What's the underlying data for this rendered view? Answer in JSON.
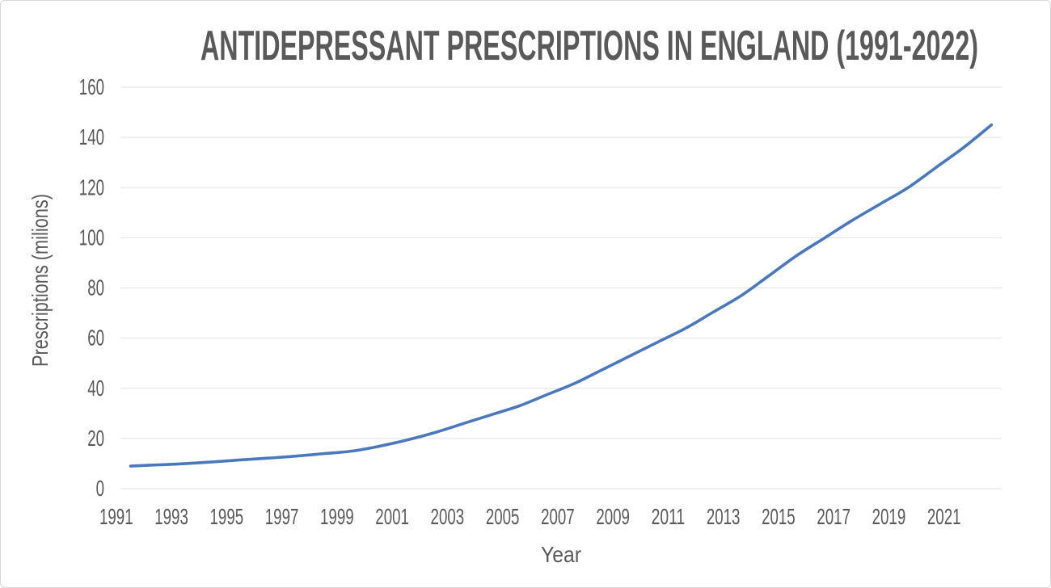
{
  "chart_data": {
    "type": "line",
    "title": "ANTIDEPRESSANT PRESCRIPTIONS IN ENGLAND (1991-2022)",
    "xlabel": "Year",
    "ylabel": "Prescriptions (milions)",
    "x": [
      1991,
      1992,
      1993,
      1994,
      1995,
      1996,
      1997,
      1998,
      1999,
      2000,
      2001,
      2002,
      2003,
      2004,
      2005,
      2006,
      2007,
      2008,
      2009,
      2010,
      2011,
      2012,
      2013,
      2014,
      2015,
      2016,
      2017,
      2018,
      2019,
      2020,
      2021,
      2022
    ],
    "series": [
      {
        "name": "Antidepressant prescriptions (millions)",
        "values": [
          9,
          9.5,
          10,
          10.7,
          11.5,
          12.2,
          13,
          14,
          15,
          17,
          19.5,
          22.5,
          26,
          29.5,
          33,
          37.5,
          42,
          47.5,
          53,
          58.5,
          64,
          70.5,
          77,
          85,
          93,
          100,
          107,
          113.5,
          120,
          128,
          136,
          145
        ]
      }
    ],
    "xticks": [
      1991,
      1993,
      1995,
      1997,
      1999,
      2001,
      2003,
      2005,
      2007,
      2009,
      2011,
      2013,
      2015,
      2017,
      2019,
      2021
    ],
    "yticks": [
      0,
      20,
      40,
      60,
      80,
      100,
      120,
      140,
      160
    ],
    "ylim": [
      0,
      160
    ],
    "grid": "horizontal",
    "legend": "none"
  },
  "colors": {
    "line": "#4a78bd",
    "grid": "#e2e2e2",
    "text": "#595959",
    "background": "#ffffff",
    "border": "#d8d8d8"
  }
}
